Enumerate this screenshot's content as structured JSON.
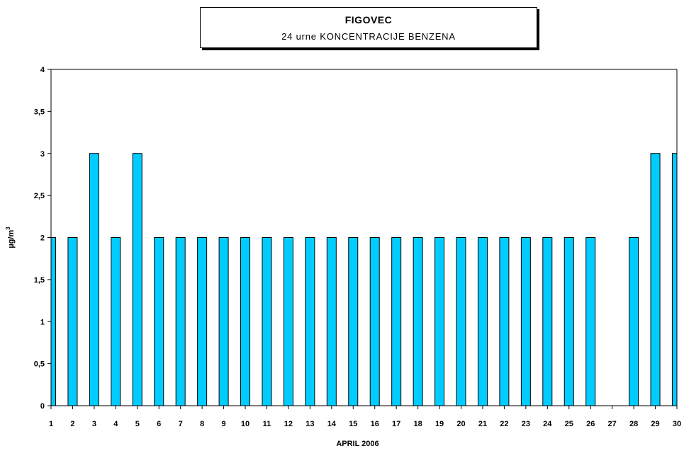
{
  "title": "FIGOVEC",
  "subtitle": "24 urne KONCENTRACIJE BENZENA",
  "colors": {
    "bar_fill": "#00ccff",
    "bar_stroke": "#000000"
  },
  "chart_data": {
    "type": "bar",
    "title": "FIGOVEC",
    "subtitle": "24 urne KONCENTRACIJE BENZENA",
    "xlabel": "APRIL 2006",
    "ylabel": "µg/m3",
    "ylim": [
      0,
      4
    ],
    "yticks": [
      "0",
      "0,5",
      "1",
      "1,5",
      "2",
      "2,5",
      "3",
      "3,5",
      "4"
    ],
    "categories": [
      "1",
      "2",
      "3",
      "4",
      "5",
      "6",
      "7",
      "8",
      "9",
      "10",
      "11",
      "12",
      "13",
      "14",
      "15",
      "16",
      "17",
      "18",
      "19",
      "20",
      "21",
      "22",
      "23",
      "24",
      "25",
      "26",
      "27",
      "28",
      "29",
      "30"
    ],
    "values": [
      2,
      2,
      3,
      2,
      3,
      2,
      2,
      2,
      2,
      2,
      2,
      2,
      2,
      2,
      2,
      2,
      2,
      2,
      2,
      2,
      2,
      2,
      2,
      2,
      2,
      2,
      null,
      2,
      3,
      3
    ],
    "grid": false,
    "legend": "none"
  }
}
